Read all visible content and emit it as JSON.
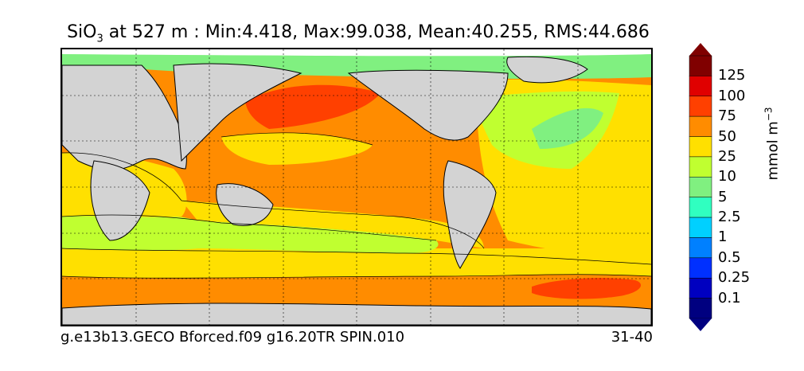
{
  "title": {
    "species": "SiO",
    "species_sub": "3",
    "rest": " at 527 m : Min:4.418, Max:99.038, Mean:40.255, RMS:44.686"
  },
  "caption_left": "g.e13b13.GECO Bforced.f09 g16.20TR SPIN.010",
  "caption_right": "31-40",
  "colorbar": {
    "units_main": "mmol m",
    "units_sup": "−3",
    "levels": [
      "125",
      "100",
      "75",
      "50",
      "25",
      "10",
      "5",
      "2.5",
      "1",
      "0.5",
      "0.25",
      "0.1"
    ],
    "colors": {
      "above_125": "#800000",
      "125": "#e00000",
      "100": "#ff4000",
      "75": "#ff8c00",
      "50": "#ffe000",
      "25": "#c0ff30",
      "10": "#80f080",
      "5": "#30ffc0",
      "2.5": "#00d0ff",
      "1": "#0080ff",
      "0.5": "#0030ff",
      "0.25": "#0000c0",
      "below_0.1": "#000080",
      "land": "#d3d3d3",
      "missing": "#ffffff"
    }
  }
}
